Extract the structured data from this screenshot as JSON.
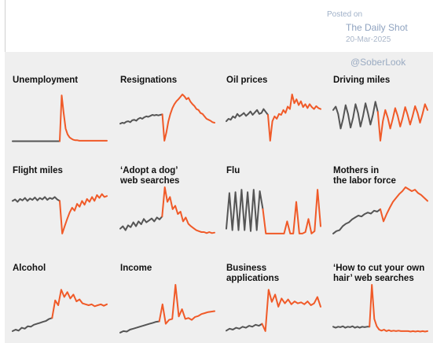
{
  "watermark": {
    "posted_label": "Posted on",
    "source": "The Daily Shot",
    "date": "20-Mar-2025",
    "handle": "@SoberLook"
  },
  "colors": {
    "before": "#555555",
    "after": "#f05a28",
    "panel_background": "#efefef"
  },
  "chart_data": [
    {
      "type": "line",
      "title": [
        "Unemployment"
      ],
      "series": [
        {
          "values": [
            0.04,
            0.04,
            0.04,
            0.04,
            0.04,
            0.04,
            0.04,
            0.04,
            0.04,
            0.04,
            0.04,
            0.04,
            0.04,
            0.04,
            0.04,
            0.04,
            0.04,
            0.04,
            0.04,
            0.04,
            0.04,
            0.04,
            0.04,
            0.04,
            0.04
          ]
        },
        {
          "values": [
            0.04,
            0.98,
            0.62,
            0.3,
            0.18,
            0.12,
            0.09,
            0.07,
            0.06,
            0.06,
            0.05,
            0.05,
            0.05,
            0.05,
            0.05,
            0.05,
            0.05,
            0.05,
            0.05,
            0.05,
            0.05,
            0.05,
            0.05,
            0.05,
            0.05
          ]
        }
      ]
    },
    {
      "type": "line",
      "title": [
        "Resignations"
      ],
      "series": [
        {
          "values": [
            0.4,
            0.42,
            0.41,
            0.44,
            0.45,
            0.43,
            0.47,
            0.48,
            0.46,
            0.5,
            0.52,
            0.5,
            0.53,
            0.55,
            0.54,
            0.56,
            0.58,
            0.57,
            0.58,
            0.57,
            0.58,
            0.59
          ]
        },
        {
          "values": [
            0.59,
            0.05,
            0.22,
            0.45,
            0.6,
            0.72,
            0.8,
            0.86,
            0.9,
            0.95,
            1.0,
            0.96,
            0.9,
            0.93,
            0.85,
            0.8,
            0.76,
            0.7,
            0.68,
            0.62,
            0.6,
            0.55,
            0.5,
            0.48,
            0.46,
            0.43,
            0.42
          ]
        }
      ]
    },
    {
      "type": "line",
      "title": [
        "Oil prices"
      ],
      "series": [
        {
          "values": [
            0.45,
            0.5,
            0.48,
            0.55,
            0.52,
            0.6,
            0.55,
            0.58,
            0.62,
            0.56,
            0.6,
            0.65,
            0.58,
            0.63,
            0.68,
            0.6,
            0.62,
            0.7,
            0.64,
            0.58
          ]
        },
        {
          "values": [
            0.58,
            0.05,
            0.45,
            0.55,
            0.5,
            0.6,
            0.58,
            0.68,
            0.62,
            0.75,
            0.7,
            1.0,
            0.82,
            0.9,
            0.78,
            0.86,
            0.74,
            0.8,
            0.72,
            0.8,
            0.74,
            0.7,
            0.76,
            0.72,
            0.7
          ]
        }
      ]
    },
    {
      "type": "line",
      "title": [
        "Driving miles"
      ],
      "series": [
        {
          "values": [
            0.68,
            0.75,
            0.6,
            0.3,
            0.5,
            0.78,
            0.6,
            0.32,
            0.52,
            0.8,
            0.62,
            0.34,
            0.55,
            0.82,
            0.62,
            0.38,
            0.58,
            0.85,
            0.64
          ]
        },
        {
          "values": [
            0.64,
            0.05,
            0.45,
            0.68,
            0.52,
            0.3,
            0.5,
            0.72,
            0.56,
            0.34,
            0.52,
            0.74,
            0.58,
            0.38,
            0.56,
            0.76,
            0.62,
            0.42,
            0.6,
            0.8,
            0.68
          ]
        }
      ]
    },
    {
      "type": "line",
      "title": [
        "Flight miles"
      ],
      "series": [
        {
          "values": [
            0.72,
            0.75,
            0.7,
            0.76,
            0.73,
            0.78,
            0.72,
            0.77,
            0.74,
            0.79,
            0.73,
            0.78,
            0.75,
            0.8,
            0.74,
            0.78,
            0.76,
            0.8,
            0.75,
            0.72
          ]
        },
        {
          "values": [
            0.72,
            0.05,
            0.2,
            0.35,
            0.48,
            0.58,
            0.52,
            0.66,
            0.6,
            0.72,
            0.64,
            0.76,
            0.7,
            0.8,
            0.72,
            0.84,
            0.78,
            0.86,
            0.8,
            0.82
          ]
        }
      ]
    },
    {
      "type": "line",
      "title": [
        "‘Adopt a dog’",
        "web searches"
      ],
      "series": [
        {
          "values": [
            0.15,
            0.2,
            0.12,
            0.22,
            0.18,
            0.28,
            0.2,
            0.3,
            0.24,
            0.35,
            0.28,
            0.32,
            0.36,
            0.3,
            0.38,
            0.34,
            0.4
          ]
        },
        {
          "values": [
            0.4,
            1.0,
            0.7,
            0.8,
            0.55,
            0.62,
            0.45,
            0.5,
            0.3,
            0.38,
            0.25,
            0.2,
            0.16,
            0.12,
            0.1,
            0.08,
            0.08,
            0.06,
            0.08,
            0.06,
            0.07
          ]
        }
      ]
    },
    {
      "type": "line",
      "title": [
        "Flu"
      ],
      "series": [
        {
          "values": [
            0.15,
            0.88,
            0.12,
            0.9,
            0.12,
            0.95,
            0.12,
            0.9,
            0.1,
            0.95,
            0.12,
            0.92,
            0.55
          ]
        },
        {
          "values": [
            0.55,
            0.05,
            0.05,
            0.05,
            0.05,
            0.05,
            0.05,
            0.05,
            0.3,
            0.05,
            0.05,
            0.7,
            0.05,
            0.05,
            0.08,
            0.35,
            0.05,
            0.1,
            0.95,
            0.2
          ]
        }
      ]
    },
    {
      "type": "line",
      "title": [
        "Mothers in",
        "the labor force"
      ],
      "series": [
        {
          "values": [
            0.05,
            0.1,
            0.12,
            0.2,
            0.25,
            0.28,
            0.34,
            0.38,
            0.42,
            0.4,
            0.45,
            0.48,
            0.46,
            0.52,
            0.5,
            0.55
          ]
        },
        {
          "values": [
            0.55,
            0.3,
            0.45,
            0.58,
            0.7,
            0.78,
            0.86,
            0.92,
            1.0,
            0.96,
            0.92,
            0.95,
            0.88,
            0.84,
            0.78,
            0.72
          ]
        }
      ]
    },
    {
      "type": "line",
      "title": [
        "Alcohol"
      ],
      "series": [
        {
          "values": [
            0.05,
            0.08,
            0.06,
            0.12,
            0.1,
            0.15,
            0.14,
            0.18,
            0.2,
            0.22,
            0.24,
            0.26,
            0.3,
            0.32
          ]
        },
        {
          "values": [
            0.32,
            0.68,
            0.58,
            0.9,
            0.75,
            0.85,
            0.72,
            0.8,
            0.66,
            0.7,
            0.62,
            0.6,
            0.58,
            0.6,
            0.56,
            0.58,
            0.6,
            0.57,
            0.6
          ]
        }
      ]
    },
    {
      "type": "line",
      "title": [
        "Income"
      ],
      "series": [
        {
          "values": [
            0.02,
            0.05,
            0.04,
            0.08,
            0.1,
            0.12,
            0.14,
            0.16,
            0.18,
            0.2,
            0.22,
            0.24,
            0.25
          ]
        },
        {
          "values": [
            0.25,
            0.6,
            0.2,
            0.28,
            0.3,
            1.0,
            0.35,
            0.5,
            0.3,
            0.32,
            0.28,
            0.34,
            0.36,
            0.4,
            0.42,
            0.44,
            0.45,
            0.46
          ]
        }
      ]
    },
    {
      "type": "line",
      "title": [
        "Business",
        "applications"
      ],
      "series": [
        {
          "values": [
            0.06,
            0.1,
            0.08,
            0.12,
            0.1,
            0.14,
            0.12,
            0.16,
            0.14,
            0.18,
            0.16,
            0.2
          ]
        },
        {
          "values": [
            0.2,
            0.05,
            0.9,
            0.65,
            0.8,
            0.55,
            0.72,
            0.62,
            0.7,
            0.6,
            0.66,
            0.62,
            0.64,
            0.6,
            0.66,
            0.58,
            0.62,
            0.75,
            0.55
          ]
        }
      ]
    },
    {
      "type": "line",
      "title": [
        "‘How to cut your own",
        "hair’ web searches"
      ],
      "series": [
        {
          "values": [
            0.14,
            0.12,
            0.14,
            0.13,
            0.15,
            0.12,
            0.14,
            0.13,
            0.15,
            0.12,
            0.14,
            0.12,
            0.14,
            0.13,
            0.14,
            0.14
          ]
        },
        {
          "values": [
            0.14,
            1.0,
            0.3,
            0.15,
            0.08,
            0.06,
            0.08,
            0.05,
            0.07,
            0.05,
            0.06,
            0.05,
            0.06,
            0.05,
            0.05,
            0.05,
            0.05,
            0.04,
            0.05,
            0.04,
            0.05,
            0.04,
            0.05,
            0.04,
            0.05
          ]
        }
      ]
    }
  ]
}
